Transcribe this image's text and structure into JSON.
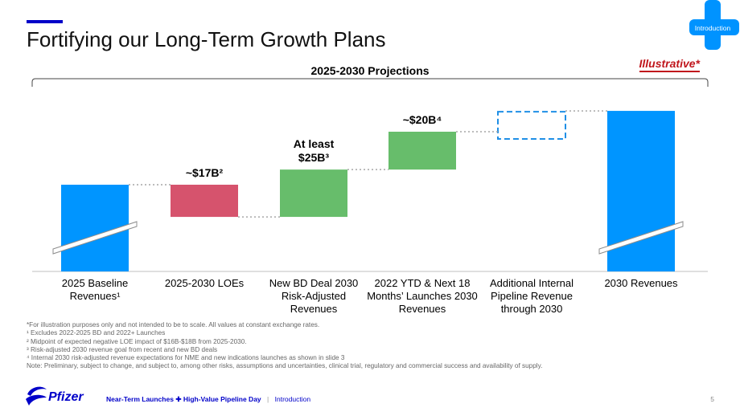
{
  "slide": {
    "title": "Fortifying our Long-Term Growth Plans",
    "badge": "Introduction",
    "illustrative": "Illustrative*",
    "subtitle": "2025-2030 Projections"
  },
  "chart_data": {
    "type": "bar",
    "subtype": "waterfall",
    "categories": [
      "2025 Baseline Revenues¹",
      "2025-2030 LOEs",
      "New BD Deal 2030 Risk-Adjusted Revenues",
      "2022 YTD & Next 18 Months’ Launches 2030 Revenues",
      "Additional Internal Pipeline Revenue through 2030",
      "2030 Revenues"
    ],
    "data_labels": [
      "",
      "~$17B²",
      "At least $25B³",
      "~$20B⁴",
      "",
      ""
    ],
    "bars": [
      {
        "kind": "total",
        "start": 0,
        "end": 100
      },
      {
        "kind": "decrease",
        "start": 100,
        "end": 83
      },
      {
        "kind": "increase",
        "start": 83,
        "end": 108
      },
      {
        "kind": "increase",
        "start": 108,
        "end": 128
      },
      {
        "kind": "illustrative",
        "start": 128,
        "end": 139
      },
      {
        "kind": "total",
        "start": 0,
        "end": 139
      }
    ],
    "axis_break": true,
    "colors": {
      "total": "#0095ff",
      "decrease": "#d6536d",
      "increase": "#67bd6b",
      "illustrative": "#1f8fe6",
      "connector": "#a6a6a6"
    }
  },
  "notes": [
    "*For illustration purposes only and not intended to be to scale. All values at constant exchange rates.",
    "¹ Excludes 2022-2025 BD and 2022+ Launches",
    "² Midpoint of expected negative LOE impact of $16B-$18B from 2025-2030.",
    "³ Risk-adjusted 2030 revenue goal from recent and new BD deals",
    "⁴ Internal 2030 risk-adjusted revenue expectations for NME and new indications launches as shown in slide 3",
    "Note: Preliminary, subject to change, and subject to, among other risks, assumptions and uncertainties, clinical trial, regulatory and commercial success and availability of supply."
  ],
  "footer": {
    "logo": "Pfizer",
    "event_part1": "Near-Term Launches",
    "event_part2": "High-Value Pipeline Day",
    "section": "Introduction",
    "page": "5"
  },
  "icons": {
    "logo": "pfizer-logo",
    "plus": "plus-icon"
  }
}
